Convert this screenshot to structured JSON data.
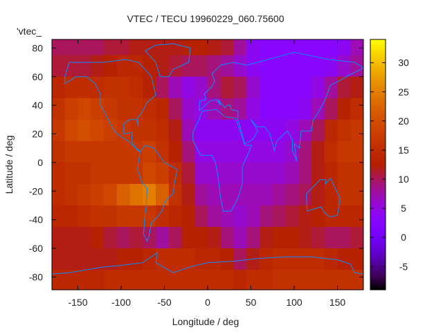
{
  "chart_data": {
    "type": "heatmap",
    "title": "VTEC / TECU 19960229_060.75600",
    "xlabel": "Longitude / deg",
    "ylabel": "Latitude / deg",
    "legend_label": "'vtec_",
    "legend_position": "top-left",
    "xlim": [
      -180,
      180
    ],
    "ylim": [
      -89,
      86
    ],
    "xticks": [
      -150,
      -100,
      -50,
      0,
      50,
      100,
      150
    ],
    "yticks": [
      -80,
      -60,
      -40,
      -20,
      0,
      20,
      40,
      60,
      80
    ],
    "colorbar": {
      "range": [
        -9,
        34
      ],
      "ticks": [
        -5,
        0,
        5,
        10,
        15,
        20,
        25,
        30
      ],
      "palette": "black-blue-violet-yellow"
    },
    "coastline_color": "#0a8cff",
    "grid_lon_centers": [
      -172.5,
      -157.5,
      -142.5,
      -127.5,
      -112.5,
      -97.5,
      -82.5,
      -67.5,
      -52.5,
      -37.5,
      -22.5,
      -7.5,
      7.5,
      22.5,
      37.5,
      52.5,
      67.5,
      82.5,
      97.5,
      112.5,
      127.5,
      142.5,
      157.5,
      172.5
    ],
    "grid_lat_centers": [
      82.5,
      67.5,
      52.5,
      37.5,
      22.5,
      7.5,
      -7.5,
      -22.5,
      -37.5,
      -52.5,
      -67.5,
      -82.5
    ],
    "values": [
      [
        10,
        10,
        10,
        10,
        11,
        11,
        12,
        12,
        12,
        12,
        13,
        13,
        12,
        11,
        8,
        4,
        3,
        3,
        3,
        3,
        3,
        3,
        4,
        7
      ],
      [
        11,
        11,
        11,
        12,
        13,
        14,
        14,
        13,
        12,
        11,
        10,
        10,
        9,
        8,
        6,
        4,
        3,
        3,
        3,
        3,
        3,
        4,
        6,
        8
      ],
      [
        14,
        15,
        15,
        15,
        16,
        16,
        15,
        13,
        10,
        7,
        5,
        6,
        9,
        11,
        10,
        6,
        3,
        3,
        3,
        3,
        5,
        8,
        11,
        12
      ],
      [
        16,
        18,
        19,
        18,
        17,
        16,
        16,
        15,
        14,
        10,
        6,
        5,
        7,
        9,
        8,
        5,
        3,
        3,
        3,
        4,
        7,
        10,
        13,
        15
      ],
      [
        17,
        19,
        20,
        19,
        18,
        17,
        16,
        16,
        15,
        12,
        7,
        4,
        4,
        4,
        4,
        4,
        4,
        4,
        5,
        7,
        10,
        14,
        16,
        17
      ],
      [
        16,
        17,
        17,
        17,
        17,
        17,
        17,
        18,
        16,
        13,
        9,
        5,
        5,
        5,
        5,
        5,
        5,
        5,
        6,
        9,
        12,
        15,
        17,
        17
      ],
      [
        15,
        16,
        16,
        17,
        17,
        17,
        17,
        19,
        18,
        15,
        11,
        6,
        6,
        6,
        6,
        6,
        6,
        6,
        7,
        9,
        12,
        14,
        16,
        16
      ],
      [
        15,
        16,
        17,
        18,
        19,
        22,
        24,
        25,
        22,
        16,
        12,
        8,
        7,
        7,
        7,
        7,
        7,
        8,
        9,
        10,
        12,
        14,
        16,
        16
      ],
      [
        14,
        14,
        15,
        16,
        16,
        17,
        17,
        17,
        15,
        14,
        13,
        10,
        8,
        7,
        6,
        7,
        9,
        10,
        11,
        12,
        13,
        14,
        14,
        14
      ],
      [
        12,
        12,
        12,
        13,
        11,
        10,
        11,
        10,
        8,
        10,
        13,
        13,
        12,
        9,
        7,
        9,
        12,
        13,
        13,
        12,
        11,
        10,
        10,
        11
      ],
      [
        12,
        12,
        12,
        12,
        12,
        13,
        13,
        14,
        15,
        15,
        15,
        14,
        14,
        13,
        10,
        12,
        14,
        15,
        15,
        15,
        15,
        14,
        13,
        13
      ],
      [
        14,
        14,
        14,
        14,
        15,
        15,
        15,
        15,
        15,
        15,
        15,
        15,
        15,
        15,
        14,
        15,
        15,
        16,
        16,
        16,
        16,
        16,
        16,
        16
      ]
    ]
  }
}
